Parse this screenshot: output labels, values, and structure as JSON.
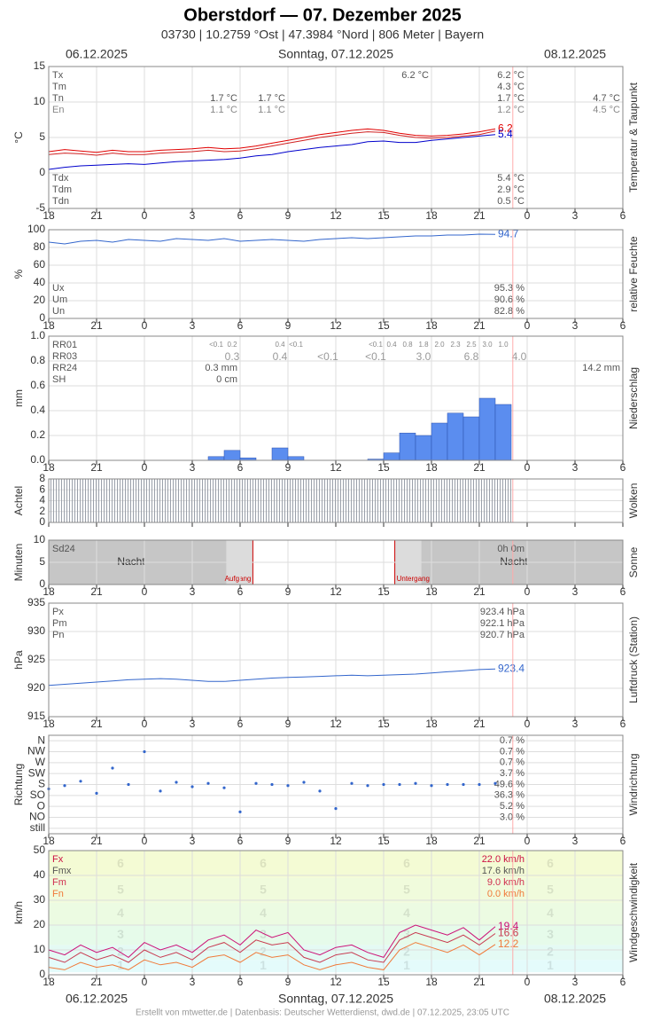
{
  "title": "Oberstdorf  —  07. Dezember 2025",
  "subtitle": "03730  |  10.2759 °Ost  |  47.3984 °Nord  |  806 Meter  |  Bayern",
  "dates": [
    "06.12.2025",
    "Sonntag, 07.12.2025",
    "08.12.2025"
  ],
  "footer": "Erstellt von mtwetter.de | Datenbasis: Deutscher Wetterdienst, dwd.de | 07.12.2025, 23:05 UTC",
  "now": 47.1,
  "time_axis": {
    "xlim": [
      18,
      54
    ],
    "xticks": [
      18,
      21,
      {
        "value": 24,
        "label": "0"
      },
      {
        "value": 27,
        "label": "3"
      },
      {
        "value": 30,
        "label": "6"
      },
      {
        "value": 33,
        "label": "9"
      },
      {
        "value": 36,
        "label": "12"
      },
      {
        "value": 39,
        "label": "15"
      },
      {
        "value": 42,
        "label": "18"
      },
      {
        "value": 45,
        "label": "21"
      },
      {
        "value": 48,
        "label": "0"
      },
      {
        "value": 51,
        "label": "3"
      },
      {
        "value": 54,
        "label": "6"
      }
    ]
  },
  "chart_data": [
    {
      "type": "line",
      "ylabel": "°C",
      "side_label": "Temperatur & Taupunkt",
      "ylim": [
        -5,
        15
      ],
      "yticks": [
        -5,
        0,
        5,
        10,
        15
      ],
      "grid": true,
      "x": [
        18,
        19,
        20,
        21,
        22,
        23,
        24,
        25,
        26,
        27,
        28,
        29,
        30,
        31,
        32,
        33,
        34,
        35,
        36,
        37,
        38,
        39,
        40,
        41,
        42,
        43,
        44,
        45,
        46
      ],
      "series": [
        {
          "color": "#e00000",
          "label_end": true,
          "values": [
            3.0,
            3.3,
            3.1,
            2.9,
            3.2,
            3.0,
            3.0,
            3.2,
            3.3,
            3.4,
            3.6,
            3.4,
            3.5,
            3.8,
            4.2,
            4.6,
            5.0,
            5.4,
            5.7,
            6.0,
            6.2,
            6.0,
            5.6,
            5.3,
            5.2,
            5.3,
            5.5,
            5.8,
            6.2
          ]
        },
        {
          "color": "#d02020",
          "values": [
            2.6,
            2.8,
            2.7,
            2.5,
            2.8,
            2.6,
            2.6,
            2.8,
            2.9,
            3.0,
            3.2,
            3.0,
            3.1,
            3.4,
            3.8,
            4.2,
            4.6,
            5.0,
            5.3,
            5.6,
            5.8,
            5.7,
            5.3,
            5.0,
            4.9,
            5.0,
            5.2,
            5.4,
            5.9
          ]
        },
        {
          "color": "#0000cc",
          "label_end": true,
          "values": [
            0.5,
            0.8,
            1.0,
            1.1,
            1.2,
            1.3,
            1.2,
            1.4,
            1.6,
            1.7,
            1.8,
            1.9,
            2.1,
            2.4,
            2.6,
            3.0,
            3.3,
            3.6,
            3.8,
            4.0,
            4.4,
            4.5,
            4.3,
            4.3,
            4.6,
            4.8,
            5.0,
            5.2,
            5.4
          ]
        }
      ],
      "stats": [
        {
          "label": "Tx",
          "cells": [
            null,
            null,
            "6.2 °C",
            "6.2 °C",
            null
          ]
        },
        {
          "label": "Tm",
          "cells": [
            null,
            null,
            null,
            "4.3 °C",
            null
          ]
        },
        {
          "label": "Tn",
          "cells": [
            "1.7 °C",
            "1.7 °C",
            null,
            "1.7 °C",
            "4.7 °C"
          ]
        },
        {
          "label": "En",
          "color": "#888888",
          "cells": [
            "1.1 °C",
            "1.1 °C",
            null,
            "1.2 °C",
            "4.5 °C"
          ]
        }
      ],
      "stats_bottom": [
        {
          "label": "Tdx",
          "cells": [
            null,
            null,
            null,
            "5.4 °C"
          ]
        },
        {
          "label": "Tdm",
          "cells": [
            null,
            null,
            null,
            "2.9 °C"
          ]
        },
        {
          "label": "Tdn",
          "cells": [
            null,
            null,
            null,
            "0.5 °C"
          ]
        }
      ]
    },
    {
      "type": "line",
      "ylabel": "%",
      "side_label": "relative Feuchte",
      "ylim": [
        0,
        100
      ],
      "yticks": [
        0,
        20,
        40,
        60,
        80,
        100
      ],
      "grid": true,
      "x": [
        18,
        19,
        20,
        21,
        22,
        23,
        24,
        25,
        26,
        27,
        28,
        29,
        30,
        31,
        32,
        33,
        34,
        35,
        36,
        37,
        38,
        39,
        40,
        41,
        42,
        43,
        44,
        45,
        46
      ],
      "series": [
        {
          "color": "#3366cc",
          "label_end": true,
          "values": [
            86,
            84,
            87,
            88,
            86,
            89,
            88,
            87,
            90,
            89,
            88,
            90,
            87,
            88,
            89,
            88,
            87,
            89,
            90,
            91,
            90,
            91,
            92,
            93,
            93,
            94,
            94,
            95,
            94.7
          ]
        }
      ],
      "stats_bottom": [
        {
          "label": "Ux",
          "cells": [
            null,
            null,
            null,
            "95.3 %"
          ]
        },
        {
          "label": "Um",
          "cells": [
            null,
            null,
            null,
            "90.6 %"
          ]
        },
        {
          "label": "Un",
          "cells": [
            null,
            null,
            null,
            "82.8 %"
          ]
        }
      ]
    },
    {
      "type": "bar",
      "ylabel": "mm",
      "side_label": "Niederschlag",
      "ylim": [
        0,
        1
      ],
      "grid": true,
      "color": "#5b8def",
      "yticks": [
        {
          "value": 0,
          "label": "0.0"
        },
        0.2,
        0.4,
        0.6,
        0.8,
        {
          "value": 1,
          "label": "1.0"
        }
      ],
      "x": [
        18,
        19,
        20,
        21,
        22,
        23,
        24,
        25,
        26,
        27,
        28,
        29,
        30,
        31,
        32,
        33,
        34,
        35,
        36,
        37,
        38,
        39,
        40,
        41,
        42,
        43,
        44,
        45,
        46
      ],
      "values": [
        0,
        0,
        0,
        0,
        0,
        0,
        0,
        0,
        0,
        0,
        0.03,
        0.08,
        0.02,
        0,
        0.1,
        0.03,
        0,
        0,
        0,
        0,
        0.01,
        0.06,
        0.22,
        0.2,
        0.3,
        0.38,
        0.35,
        0.5,
        0.45
      ],
      "stats": [
        {
          "label": "RR01"
        },
        {
          "label": "RR03"
        },
        {
          "label": "RR24",
          "cells": [
            "0.3 mm",
            null,
            null,
            null,
            "14.2 mm"
          ]
        },
        {
          "label": "SH",
          "cells": [
            "0 cm"
          ]
        }
      ],
      "rr01": {
        "x": [
          28.5,
          29.5,
          32.5,
          33.5,
          38.5,
          39.5,
          40.5,
          41.5,
          42.5,
          43.5,
          44.5,
          45.5,
          46.5
        ],
        "labels": [
          "<0.1",
          "0.2",
          "0.4",
          "<0.1",
          "<0.1",
          "0.4",
          "0.8",
          "1.8",
          "2.0",
          "2.3",
          "2.5",
          "3.0",
          "1.0"
        ]
      },
      "rr03": {
        "x": [
          29.5,
          32.5,
          35.5,
          38.5,
          41.5,
          44.5,
          47.5
        ],
        "labels": [
          "0.3",
          "0.4",
          "<0.1",
          "<0.1",
          "3.0",
          "6.8",
          "4.0"
        ]
      }
    },
    {
      "type": "bar",
      "ylabel": "Achtel",
      "side_label": "Wolken",
      "ylim": [
        0,
        8
      ],
      "yticks": [
        0,
        2,
        4,
        6,
        8
      ],
      "grid": true,
      "xtick_labels": false,
      "color": "url(#stripes)",
      "x": [
        18,
        19,
        20,
        21,
        22,
        23,
        24,
        25,
        26,
        27,
        28,
        29,
        30,
        31,
        32,
        33,
        34,
        35,
        36,
        37,
        38,
        39,
        40,
        41,
        42,
        43,
        44,
        45,
        46
      ],
      "values": [
        8,
        8,
        8,
        8,
        8,
        8,
        8,
        8,
        8,
        8,
        8,
        8,
        8,
        8,
        8,
        8,
        8,
        8,
        8,
        8,
        8,
        8,
        8,
        8,
        8,
        8,
        8,
        8,
        8
      ]
    },
    {
      "type": "bar",
      "ylabel": "Minuten",
      "side_label": "Sonne",
      "ylim": [
        0,
        10
      ],
      "yticks": [
        0,
        5,
        10
      ],
      "grid": true,
      "sunrise": 30.8,
      "sunset": 39.7,
      "night_label": "Nacht",
      "sunrise_label": "Aufgang",
      "sunset_label": "Untergang",
      "stats": [
        {
          "label": "Sd24",
          "cells": [
            null,
            null,
            null,
            "0h 0m"
          ]
        }
      ]
    },
    {
      "type": "line",
      "ylabel": "hPa",
      "side_label": "Luftdruck (Station)",
      "ylim": [
        915,
        935
      ],
      "yticks": [
        915,
        920,
        925,
        930,
        935
      ],
      "grid": true,
      "x": [
        18,
        19,
        20,
        21,
        22,
        23,
        24,
        25,
        26,
        27,
        28,
        29,
        30,
        31,
        32,
        33,
        34,
        35,
        36,
        37,
        38,
        39,
        40,
        41,
        42,
        43,
        44,
        45,
        46
      ],
      "series": [
        {
          "color": "#3366cc",
          "label_end": true,
          "values": [
            920.5,
            920.7,
            920.9,
            921.1,
            921.3,
            921.5,
            921.6,
            921.7,
            921.6,
            921.4,
            921.2,
            921.2,
            921.4,
            921.6,
            921.8,
            921.9,
            922.0,
            922.1,
            922.2,
            922.3,
            922.2,
            922.3,
            922.4,
            922.5,
            922.7,
            922.9,
            923.1,
            923.3,
            923.4
          ]
        }
      ],
      "stats": [
        {
          "label": "Px",
          "cells": [
            null,
            null,
            null,
            "923.4 hPa"
          ]
        },
        {
          "label": "Pm",
          "cells": [
            null,
            null,
            null,
            "922.1 hPa"
          ]
        },
        {
          "label": "Pn",
          "cells": [
            null,
            null,
            null,
            "920.7 hPa"
          ]
        }
      ]
    },
    {
      "type": "scatter",
      "ylabel": "Richtung",
      "side_label": "Windrichtung",
      "ylim": [
        -0.5,
        8.5
      ],
      "grid": true,
      "color": "#3366cc",
      "yticks": [
        {
          "value": 8,
          "label": "N"
        },
        {
          "value": 7,
          "label": "NW"
        },
        {
          "value": 6,
          "label": "W"
        },
        {
          "value": 5,
          "label": "SW"
        },
        {
          "value": 4,
          "label": "S"
        },
        {
          "value": 3,
          "label": "SO"
        },
        {
          "value": 2,
          "label": "O"
        },
        {
          "value": 1,
          "label": "NO"
        },
        {
          "value": 0,
          "label": "still"
        }
      ],
      "shares": [
        "0.7 %",
        "0.7 %",
        "0.7 %",
        "3.7 %",
        "49.6 %",
        "36.3 %",
        "5.2 %",
        "3.0 %"
      ],
      "x": [
        18,
        19,
        20,
        21,
        22,
        23,
        24,
        25,
        26,
        27,
        28,
        29,
        30,
        31,
        32,
        33,
        34,
        35,
        36,
        37,
        38,
        39,
        40,
        41,
        42,
        43,
        44,
        45,
        46
      ],
      "values": [
        3.6,
        3.9,
        4.3,
        3.2,
        5.5,
        4.0,
        7.0,
        3.4,
        4.2,
        3.8,
        4.1,
        3.7,
        1.5,
        4.1,
        4.0,
        3.9,
        4.2,
        3.4,
        1.8,
        4.1,
        3.9,
        4.0,
        4.0,
        4.1,
        3.9,
        4.0,
        4.0,
        4.0,
        4.1
      ]
    },
    {
      "type": "line",
      "ylabel": "km/h",
      "side_label": "Windgeschwindigkeit",
      "ylim": [
        0,
        50
      ],
      "yticks": [
        0,
        10,
        20,
        30,
        40,
        50
      ],
      "grid": true,
      "beaufort": {
        "levels": [
          1,
          2,
          3,
          4,
          5,
          6
        ],
        "bounds": [
          1,
          6,
          12,
          20,
          29,
          39,
          50
        ],
        "colors": [
          "#e4fbfb",
          "#e4faf4",
          "#e6fbea",
          "#ecfbe2",
          "#f0fbdc",
          "#f4fbd4"
        ]
      },
      "x": [
        18,
        19,
        20,
        21,
        22,
        23,
        24,
        25,
        26,
        27,
        28,
        29,
        30,
        31,
        32,
        33,
        34,
        35,
        36,
        37,
        38,
        39,
        40,
        41,
        42,
        43,
        44,
        45,
        46
      ],
      "series": [
        {
          "color": "#cc1177",
          "label_end": true,
          "values": [
            10,
            8,
            12,
            9,
            11,
            7,
            13,
            10,
            12,
            9,
            14,
            16,
            12,
            18,
            15,
            17,
            10,
            8,
            11,
            12,
            9,
            7,
            17,
            20,
            18,
            16,
            19,
            14,
            19.4
          ]
        },
        {
          "color": "#c83a50",
          "label_end": true,
          "values": [
            7,
            5,
            9,
            6,
            8,
            5,
            10,
            7,
            9,
            6,
            11,
            13,
            9,
            14,
            12,
            13,
            7,
            5,
            8,
            9,
            6,
            5,
            14,
            17,
            15,
            13,
            16,
            12,
            16.6
          ]
        },
        {
          "color": "#f07a3a",
          "label_end": true,
          "values": [
            3,
            2,
            5,
            3,
            4,
            2,
            6,
            4,
            5,
            3,
            7,
            8,
            5,
            9,
            7,
            8,
            4,
            2,
            4,
            5,
            3,
            2,
            10,
            13,
            11,
            9,
            12,
            8,
            12.2
          ]
        }
      ],
      "stats": [
        {
          "label": "Fx",
          "color": "#cc1144",
          "cells": [
            null,
            null,
            null,
            "22.0 km/h"
          ]
        },
        {
          "label": "Fmx",
          "color": "#555555",
          "cells": [
            null,
            null,
            null,
            "17.6 km/h"
          ]
        },
        {
          "label": "Fm",
          "color": "#d03050",
          "cells": [
            null,
            null,
            null,
            "9.0 km/h"
          ]
        },
        {
          "label": "Fn",
          "color": "#f07a3a",
          "cells": [
            null,
            null,
            null,
            "0.0 km/h"
          ]
        }
      ]
    }
  ]
}
